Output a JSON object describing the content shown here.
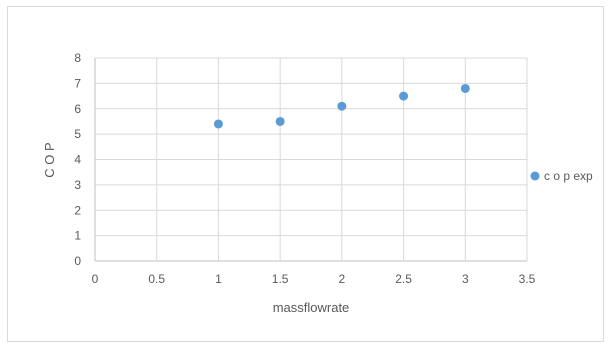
{
  "chart_data": {
    "type": "scatter",
    "title": "",
    "xlabel": "massflowrate",
    "ylabel": "C O P",
    "xlim": [
      0,
      3.5
    ],
    "ylim": [
      0,
      8
    ],
    "x_ticks": [
      "0",
      "0.5",
      "1",
      "1.5",
      "2",
      "2.5",
      "3",
      "3.5"
    ],
    "y_ticks": [
      "0",
      "1",
      "2",
      "3",
      "4",
      "5",
      "6",
      "7",
      "8"
    ],
    "grid": true,
    "legend_position": "right",
    "series": [
      {
        "name": "c o p exp",
        "color": "#5b9bd5",
        "points": [
          {
            "x": 1,
            "y": 5.4
          },
          {
            "x": 1.5,
            "y": 5.5
          },
          {
            "x": 2,
            "y": 6.1
          },
          {
            "x": 2.5,
            "y": 6.5
          },
          {
            "x": 3,
            "y": 6.8
          }
        ]
      }
    ]
  }
}
